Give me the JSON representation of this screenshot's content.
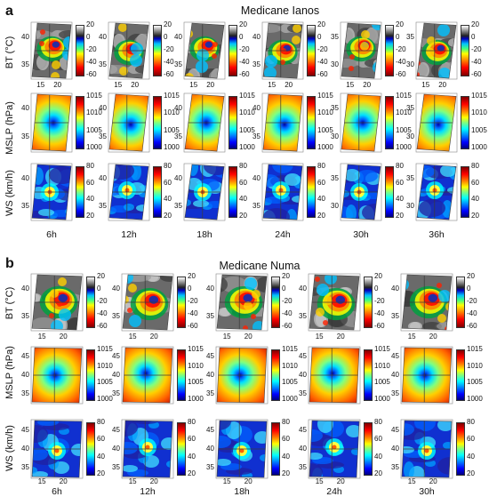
{
  "figure_a": {
    "label": "a",
    "title": "Medicane Ianos",
    "row_labels": [
      "BT (°C)",
      "MSLP (hPa)",
      "WS (km/h)"
    ],
    "columns": [
      "6h",
      "12h",
      "18h",
      "24h",
      "30h",
      "36h"
    ],
    "bt_colorbar": [
      "20",
      "0",
      "-20",
      "-40",
      "-60"
    ],
    "mslp_colorbar": [
      "1015",
      "1010",
      "1005",
      "1000"
    ],
    "ws_colorbar": [
      "80",
      "60",
      "40",
      "20"
    ],
    "x_ticks": [
      "15",
      "20"
    ],
    "bt_y_ticks": [
      [
        "40",
        "35"
      ],
      [
        "40",
        "35"
      ],
      [
        "40",
        "35"
      ],
      [
        "40",
        "35"
      ],
      [
        "35",
        "30"
      ],
      [
        "35",
        "30"
      ]
    ],
    "mslp_y_ticks": [
      [
        "40",
        "35"
      ],
      [
        "40",
        "35"
      ],
      [
        "40",
        "35"
      ],
      [
        "40",
        "35"
      ],
      [
        "35",
        "30"
      ],
      [
        "35",
        "30"
      ]
    ],
    "ws_y_ticks": [
      [
        "40",
        "35"
      ],
      [
        "40",
        "35"
      ],
      [
        "40",
        "35"
      ],
      [
        "40",
        "35"
      ],
      [
        "35",
        "30"
      ],
      [
        "35",
        "30"
      ]
    ]
  },
  "figure_b": {
    "label": "b",
    "title": "Medicane Numa",
    "row_labels": [
      "BT (°C)",
      "MSLP (hPa)",
      "WS (km/h)"
    ],
    "columns": [
      "6h",
      "12h",
      "18h",
      "24h",
      "30h"
    ],
    "bt_colorbar": [
      "20",
      "0",
      "-20",
      "-40",
      "-60"
    ],
    "mslp_colorbar": [
      "1015",
      "1010",
      "1005",
      "1000"
    ],
    "ws_colorbar": [
      "80",
      "60",
      "40",
      "20"
    ],
    "x_ticks": [
      "15",
      "20"
    ],
    "bt_y_ticks": [
      "40",
      "35"
    ],
    "mslp_y_ticks": [
      "45",
      "40",
      "35"
    ],
    "ws_y_ticks": [
      "45",
      "40",
      "35"
    ]
  },
  "colors": {
    "jet_top": "#7f0000",
    "jet_mid": "#7fff7f",
    "jet_bottom": "#00007f",
    "bt_gray_top": "#ffffff",
    "bt_gray_bottom": "#222222",
    "gridline": "#3a3a3a"
  }
}
